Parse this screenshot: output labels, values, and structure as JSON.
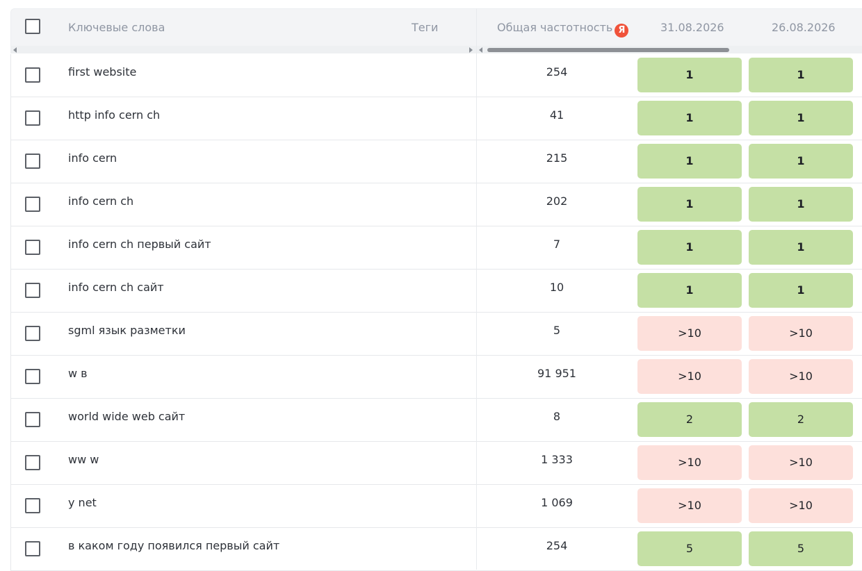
{
  "header": {
    "keywords_label": "Ключевые слова",
    "tags_label": "Теги",
    "frequency_label": "Общая частотность",
    "yandex_badge": "Я",
    "dates": [
      "31.08.2026",
      "26.08.2026"
    ]
  },
  "colors": {
    "top_position": "#c5e0a5",
    "low_position": "#fde0db",
    "yandex": "#f0523a"
  },
  "rows": [
    {
      "keyword": "first website",
      "frequency": "254",
      "positions": [
        "1",
        "1"
      ],
      "status": "good"
    },
    {
      "keyword": "http info cern ch",
      "frequency": "41",
      "positions": [
        "1",
        "1"
      ],
      "status": "good"
    },
    {
      "keyword": "info cern",
      "frequency": "215",
      "positions": [
        "1",
        "1"
      ],
      "status": "good"
    },
    {
      "keyword": "info cern ch",
      "frequency": "202",
      "positions": [
        "1",
        "1"
      ],
      "status": "good"
    },
    {
      "keyword": "info cern ch первый сайт",
      "frequency": "7",
      "positions": [
        "1",
        "1"
      ],
      "status": "good"
    },
    {
      "keyword": "info cern ch сайт",
      "frequency": "10",
      "positions": [
        "1",
        "1"
      ],
      "status": "good"
    },
    {
      "keyword": "sgml язык разметки",
      "frequency": "5",
      "positions": [
        ">10",
        ">10"
      ],
      "status": "bad"
    },
    {
      "keyword": "w в",
      "frequency": "91 951",
      "positions": [
        ">10",
        ">10"
      ],
      "status": "bad"
    },
    {
      "keyword": "world wide web сайт",
      "frequency": "8",
      "positions": [
        "2",
        "2"
      ],
      "status": "mid"
    },
    {
      "keyword": "ww w",
      "frequency": "1 333",
      "positions": [
        ">10",
        ">10"
      ],
      "status": "bad"
    },
    {
      "keyword": "y net",
      "frequency": "1 069",
      "positions": [
        ">10",
        ">10"
      ],
      "status": "bad"
    },
    {
      "keyword": "в каком году появился первый сайт",
      "frequency": "254",
      "positions": [
        "5",
        "5"
      ],
      "status": "mid"
    }
  ]
}
